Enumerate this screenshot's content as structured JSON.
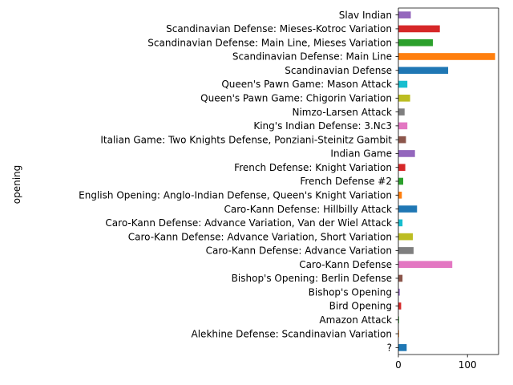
{
  "chart_data": {
    "type": "bar",
    "orientation": "horizontal",
    "ylabel": "opening",
    "xlabel": "",
    "xlim": [
      0,
      145
    ],
    "xticks": [
      0,
      100
    ],
    "grid": false,
    "legend": "none",
    "categories": [
      "?",
      "Alekhine Defense: Scandinavian Variation",
      "Amazon Attack",
      "Bird Opening",
      "Bishop's Opening",
      "Bishop's Opening: Berlin Defense",
      "Caro-Kann Defense",
      "Caro-Kann Defense: Advance Variation",
      "Caro-Kann Defense: Advance Variation, Short Variation",
      "Caro-Kann Defense: Advance Variation, Van der Wiel Attack",
      "Caro-Kann Defense: Hillbilly Attack",
      "English Opening: Anglo-Indian Defense, Queen's Knight Variation",
      "French Defense #2",
      "French Defense: Knight Variation",
      "Indian Game",
      "Italian Game: Two Knights Defense, Ponziani-Steinitz Gambit",
      "King's Indian Defense: 3.Nc3",
      "Nimzo-Larsen Attack",
      "Queen's Pawn Game: Chigorin Variation",
      "Queen's Pawn Game: Mason Attack",
      "Scandinavian Defense",
      "Scandinavian Defense: Main Line",
      "Scandinavian Defense: Main Line, Mieses Variation",
      "Scandinavian Defense: Mieses-Kotroc Variation",
      "Slav Indian"
    ],
    "values": [
      12,
      1,
      1,
      4,
      2,
      6,
      78,
      22,
      21,
      6,
      27,
      5,
      7,
      10,
      24,
      11,
      13,
      9,
      17,
      13,
      72,
      140,
      50,
      60,
      18
    ],
    "colors": [
      "#1f77b4",
      "#ff7f0e",
      "#2ca02c",
      "#d62728",
      "#9467bd",
      "#8c564b",
      "#e377c2",
      "#7f7f7f",
      "#bcbd22",
      "#17becf"
    ]
  }
}
